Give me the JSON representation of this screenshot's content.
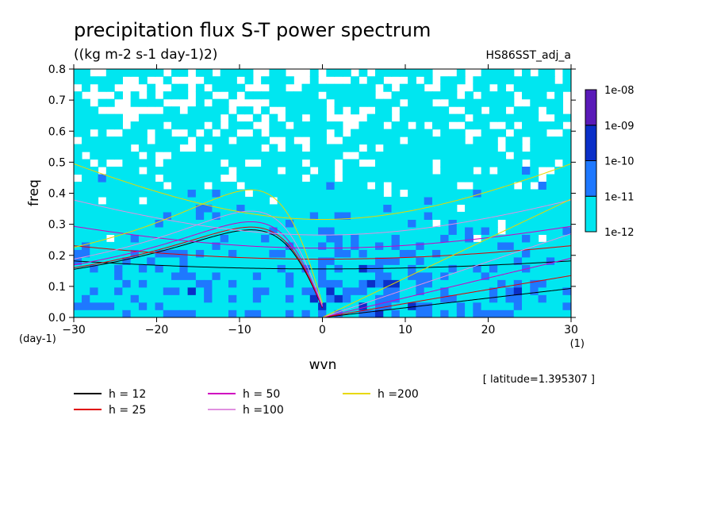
{
  "chart_data": {
    "type": "heatmap",
    "title": "precipitation flux S-T power spectrum",
    "subtitle": "((kg m-2 s-1 day-1)2)",
    "run_label": "HS86SST_adj_a",
    "xlabel": "wvn",
    "ylabel": "freq",
    "x_unit": "(1)",
    "y_unit": "(day-1)",
    "xlim": [
      -30,
      30
    ],
    "ylim": [
      0,
      0.8
    ],
    "x_ticks": [
      -30,
      -20,
      -10,
      0,
      10,
      20,
      30
    ],
    "y_ticks": [
      0.0,
      0.1,
      0.2,
      0.3,
      0.4,
      0.5,
      0.6,
      0.7,
      0.8
    ],
    "colorbar": {
      "levels": [
        "1e-12",
        "1e-11",
        "1e-10",
        "1e-09",
        "1e-08"
      ],
      "colors": [
        "#00e6f0",
        "#1e78ff",
        "#0a2fc8",
        "#5a1ab8"
      ]
    },
    "latitude_note": "[ latitude=1.395307 ]",
    "dispersion_legend": [
      {
        "label": "h = 12",
        "h": 12,
        "color": "#000000"
      },
      {
        "label": "h = 25",
        "h": 25,
        "color": "#e00000"
      },
      {
        "label": "h = 50",
        "h": 50,
        "color": "#d000c0"
      },
      {
        "label": "h =100",
        "h": 100,
        "color": "#e090e0"
      },
      {
        "label": "h =200",
        "h": 200,
        "color": "#e8d800"
      }
    ]
  }
}
